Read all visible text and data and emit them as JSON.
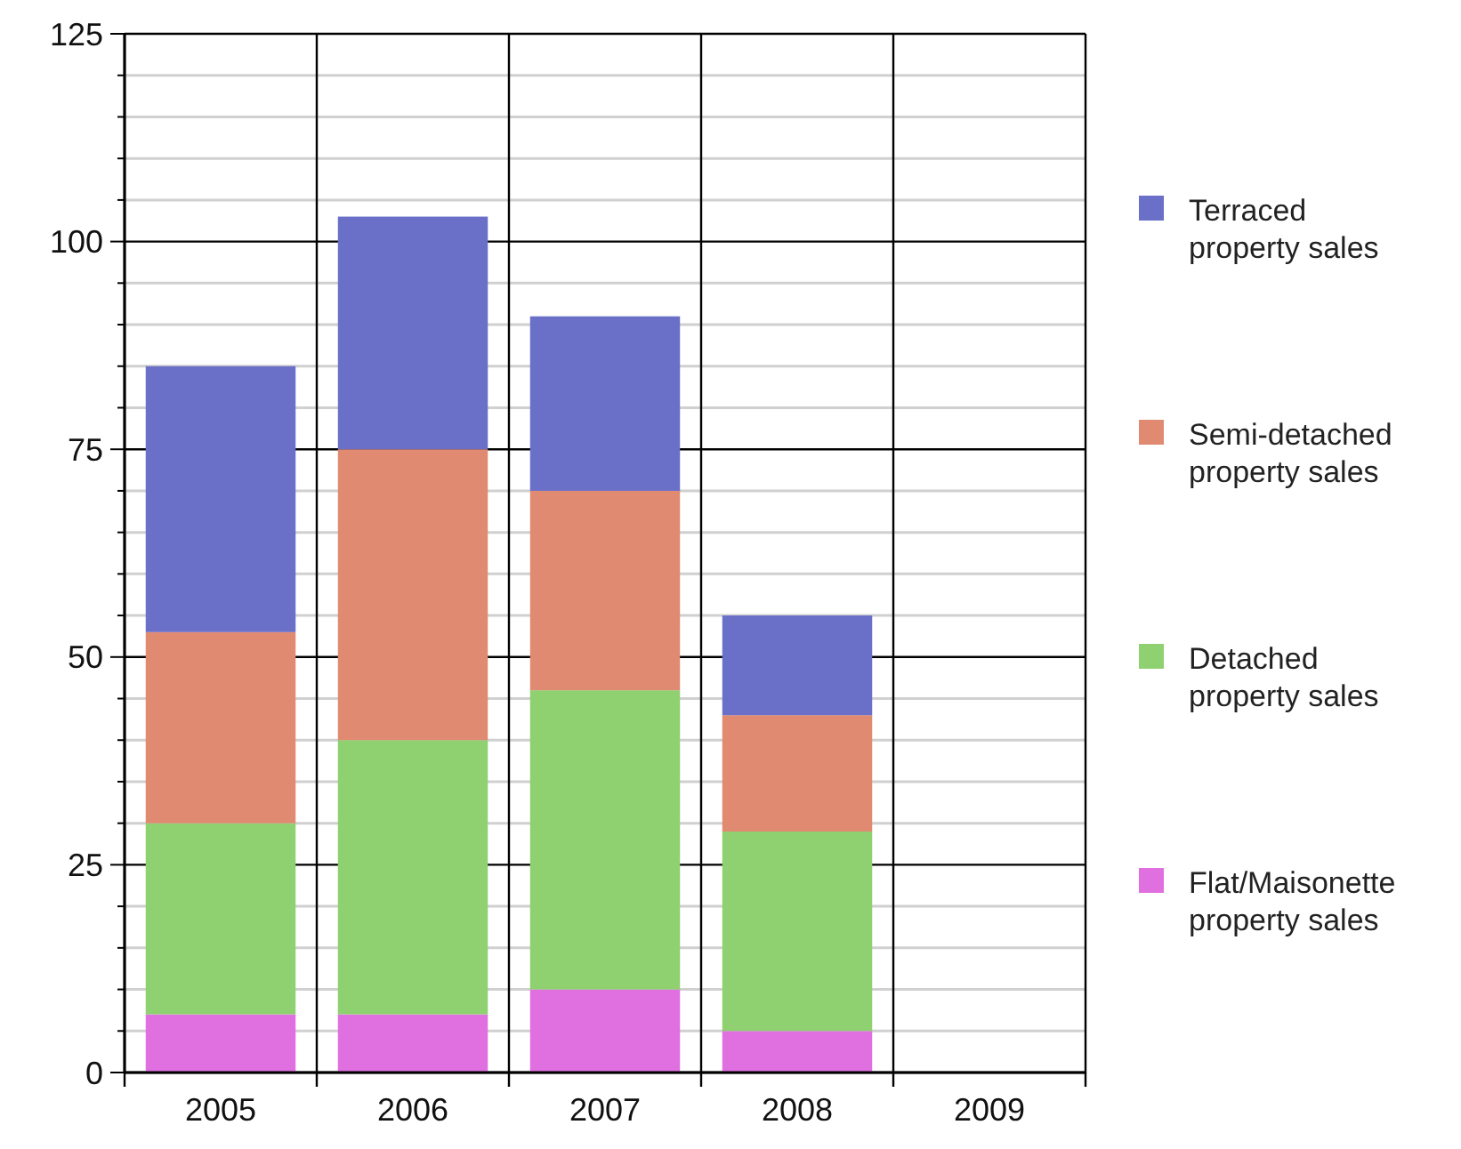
{
  "chart_data": {
    "type": "bar",
    "stacked": true,
    "categories": [
      "2005",
      "2006",
      "2007",
      "2008",
      "2009"
    ],
    "series": [
      {
        "name": "Flat/Maisonette property sales",
        "color": "#e070e0",
        "values": [
          7,
          7,
          10,
          5,
          null
        ]
      },
      {
        "name": "Detached property sales",
        "color": "#8fd070",
        "values": [
          23,
          33,
          36,
          24,
          null
        ]
      },
      {
        "name": "Semi-detached property sales",
        "color": "#e08a72",
        "values": [
          23,
          35,
          24,
          14,
          null
        ]
      },
      {
        "name": "Terraced property sales",
        "color": "#6a6fc8",
        "values": [
          32,
          28,
          21,
          12,
          null
        ]
      }
    ],
    "ylim": [
      0,
      125
    ],
    "yticks": [
      0,
      {
        "value": 5,
        "label": null
      },
      {
        "value": 10,
        "label": null
      },
      {
        "value": 15,
        "label": null
      },
      {
        "value": 20,
        "label": null
      },
      25,
      {
        "value": 30,
        "label": null
      },
      {
        "value": 35,
        "label": null
      },
      {
        "value": 40,
        "label": null
      },
      {
        "value": 45,
        "label": null
      },
      50,
      {
        "value": 55,
        "label": null
      },
      {
        "value": 60,
        "label": null
      },
      {
        "value": 65,
        "label": null
      },
      {
        "value": 70,
        "label": null
      },
      75,
      {
        "value": 80,
        "label": null
      },
      {
        "value": 85,
        "label": null
      },
      {
        "value": 90,
        "label": null
      },
      {
        "value": 95,
        "label": null
      },
      100,
      {
        "value": 105,
        "label": null
      },
      {
        "value": 110,
        "label": null
      },
      {
        "value": 115,
        "label": null
      },
      {
        "value": 120,
        "label": null
      },
      125
    ],
    "grid": true,
    "legend": "right"
  }
}
